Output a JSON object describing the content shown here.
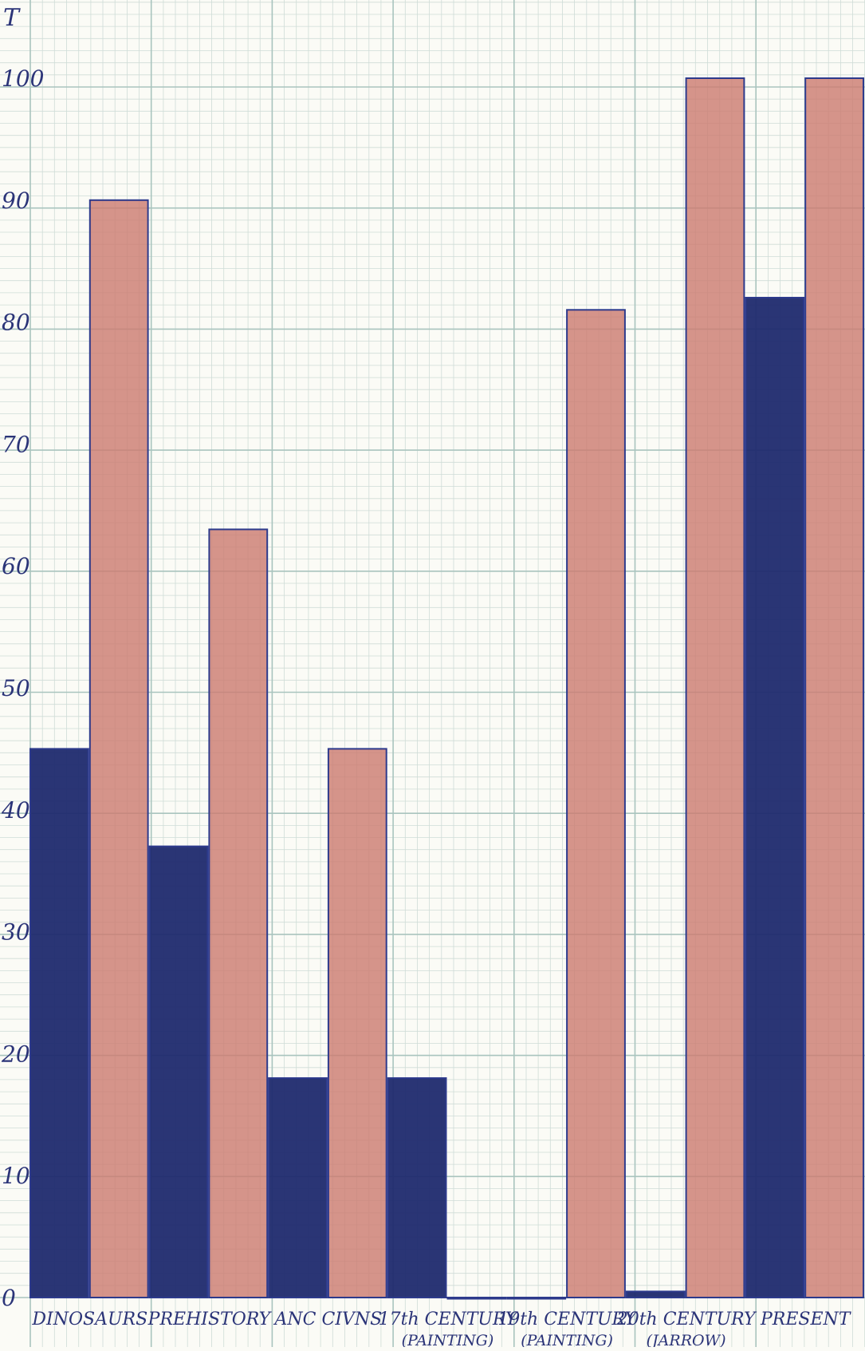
{
  "chart_data": {
    "type": "bar",
    "title": "",
    "xlabel": "",
    "ylabel": "",
    "y_axis_fragment": "T",
    "ylim": [
      0,
      107
    ],
    "yticks": [
      {
        "value": 0,
        "label": "0"
      },
      {
        "value": 10,
        "label": "10"
      },
      {
        "value": 20,
        "label": "20"
      },
      {
        "value": 30,
        "label": "30"
      },
      {
        "value": 40,
        "label": "40"
      },
      {
        "value": 50,
        "label": "50"
      },
      {
        "value": 60,
        "label": "60"
      },
      {
        "value": 70,
        "label": "70"
      },
      {
        "value": 80,
        "label": "80"
      },
      {
        "value": 90,
        "label": "90"
      },
      {
        "value": 100,
        "label": "100"
      }
    ],
    "categories": [
      [
        "DINOSAURS"
      ],
      [
        "PREHISTORY"
      ],
      [
        "ANC CIVNS"
      ],
      [
        "17th CENTURY",
        "(PAINTING)"
      ],
      [
        "19th CENTURY",
        "(PAINTING)"
      ],
      [
        "20th CENTURY",
        "(JARROW)"
      ],
      [
        "PRESENT"
      ]
    ],
    "series": [
      {
        "color": "#1f2a6e",
        "values": [
          45,
          37,
          18,
          18,
          0,
          0.5,
          82
        ]
      },
      {
        "color": "#cc7d72",
        "values": [
          90,
          63,
          45,
          0,
          81,
          100,
          100
        ]
      }
    ],
    "grid": true,
    "legend": "none"
  }
}
